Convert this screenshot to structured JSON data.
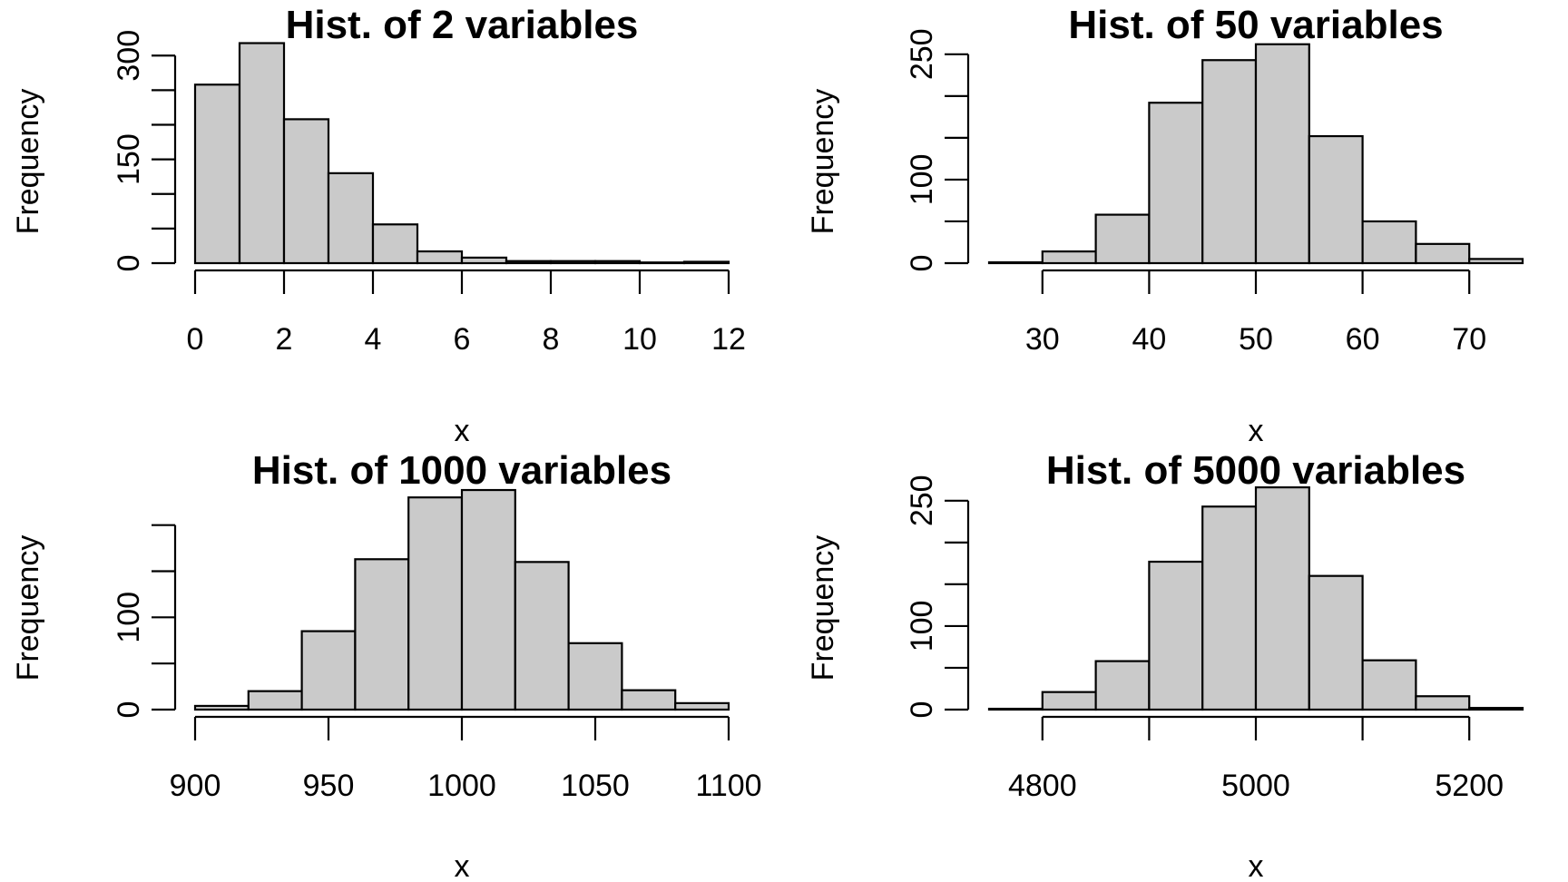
{
  "chart_data": [
    {
      "type": "bar",
      "title": "Hist. of 2 variables",
      "xlabel": "x",
      "ylabel": "Frequency",
      "xlim": [
        0,
        12
      ],
      "ylim": [
        0,
        320
      ],
      "x_ticks": [
        0,
        2,
        4,
        6,
        8,
        10,
        12
      ],
      "y_ticks": [
        0,
        50,
        100,
        150,
        200,
        250,
        300
      ],
      "y_tick_labels": [
        "0",
        "",
        "",
        "150",
        "",
        "",
        "300"
      ],
      "bin_edges": [
        0,
        1,
        2,
        3,
        4,
        5,
        6,
        7,
        8,
        9,
        10,
        11,
        12
      ],
      "values": [
        258,
        318,
        208,
        130,
        56,
        17,
        8,
        3,
        3,
        3,
        1,
        2
      ]
    },
    {
      "type": "bar",
      "title": "Hist. of 50 variables",
      "xlabel": "x",
      "ylabel": "Frequency",
      "xlim": [
        25,
        75
      ],
      "ylim": [
        0,
        265
      ],
      "x_ticks": [
        30,
        40,
        50,
        60,
        70
      ],
      "y_ticks": [
        0,
        50,
        100,
        150,
        200,
        250
      ],
      "y_tick_labels": [
        "0",
        "",
        "100",
        "",
        "",
        "250"
      ],
      "bin_edges": [
        25,
        30,
        35,
        40,
        45,
        50,
        55,
        60,
        65,
        70,
        75
      ],
      "values": [
        1,
        14,
        58,
        192,
        243,
        262,
        152,
        50,
        23,
        5
      ]
    },
    {
      "type": "bar",
      "title": "Hist. of 1000 variables",
      "xlabel": "x",
      "ylabel": "Frequency",
      "xlim": [
        900,
        1100
      ],
      "ylim": [
        0,
        240
      ],
      "x_ticks": [
        900,
        950,
        1000,
        1050,
        1100
      ],
      "y_ticks": [
        0,
        50,
        100,
        150,
        200
      ],
      "y_tick_labels": [
        "0",
        "",
        "100",
        "",
        ""
      ],
      "bin_edges": [
        900,
        920,
        940,
        960,
        980,
        1000,
        1020,
        1040,
        1060,
        1080,
        1100
      ],
      "values": [
        4,
        20,
        85,
        163,
        230,
        238,
        160,
        72,
        21,
        7
      ]
    },
    {
      "type": "bar",
      "title": "Hist. of 5000 variables",
      "xlabel": "x",
      "ylabel": "Frequency",
      "xlim": [
        4750,
        5250
      ],
      "ylim": [
        0,
        265
      ],
      "x_ticks": [
        4800,
        4900,
        5000,
        5100,
        5200
      ],
      "x_tick_labels": [
        "4800",
        "",
        "5000",
        "",
        "5200"
      ],
      "y_ticks": [
        0,
        50,
        100,
        150,
        200,
        250
      ],
      "y_tick_labels": [
        "0",
        "",
        "100",
        "",
        "",
        "250"
      ],
      "bin_edges": [
        4750,
        4800,
        4850,
        4900,
        4950,
        5000,
        5050,
        5100,
        5150,
        5200,
        5250
      ],
      "values": [
        1,
        21,
        58,
        177,
        243,
        266,
        160,
        59,
        16,
        2
      ]
    }
  ]
}
